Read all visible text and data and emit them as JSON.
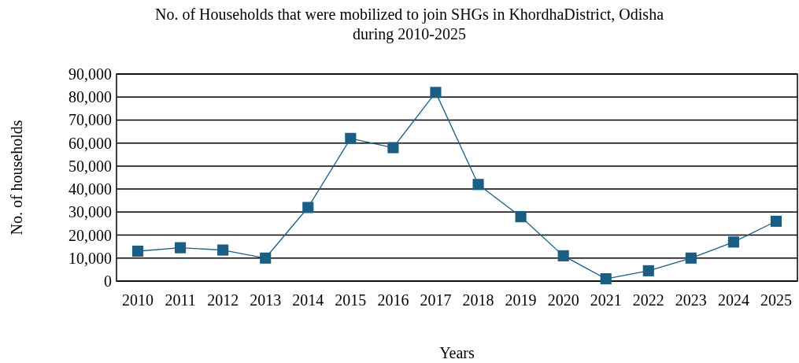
{
  "chart_data": {
    "type": "line",
    "title": "No. of Households that were mobilized to join SHGs in KhordhaDistrict, Odisha\nduring 2010-2025",
    "xlabel": "Years",
    "ylabel": "No. of households",
    "categories": [
      "2010",
      "2011",
      "2012",
      "2013",
      "2014",
      "2015",
      "2016",
      "2017",
      "2018",
      "2019",
      "2020",
      "2021",
      "2022",
      "2023",
      "2024",
      "2025"
    ],
    "series": [
      {
        "color": "#1a5e84",
        "values": [
          13000,
          14500,
          13500,
          10000,
          32000,
          62000,
          58000,
          82000,
          42000,
          28000,
          11000,
          1000,
          4500,
          10000,
          17000,
          26000
        ]
      }
    ],
    "ylim": [
      0,
      90000
    ],
    "yticks": [
      {
        "value": 0,
        "label": "0"
      },
      {
        "value": 10000,
        "label": "10,000"
      },
      {
        "value": 20000,
        "label": "20,000"
      },
      {
        "value": 30000,
        "label": "30,000"
      },
      {
        "value": 40000,
        "label": "40,000"
      },
      {
        "value": 50000,
        "label": "50,000"
      },
      {
        "value": 60000,
        "label": "60,000"
      },
      {
        "value": 70000,
        "label": "70,000"
      },
      {
        "value": 80000,
        "label": "80,000"
      },
      {
        "value": 90000,
        "label": "90,000"
      }
    ],
    "grid": "y",
    "marker": "square",
    "line_style": "solid"
  }
}
